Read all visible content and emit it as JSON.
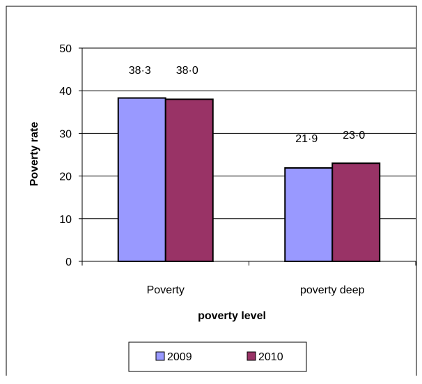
{
  "chart_data": {
    "type": "bar",
    "title": "",
    "xlabel": "poverty level",
    "ylabel": "Poverty rate",
    "categories": [
      "Poverty",
      "poverty deep"
    ],
    "series": [
      {
        "name": "2009",
        "values": [
          38.3,
          21.9
        ],
        "labels": [
          "38·3",
          "21·9"
        ],
        "color": "#9999FF"
      },
      {
        "name": "2010",
        "values": [
          38.0,
          23.0
        ],
        "labels": [
          "38·0",
          "23·0"
        ],
        "color": "#993366"
      }
    ],
    "ylim": [
      0,
      50
    ],
    "yticks": [
      "0",
      "10",
      "20",
      "30",
      "40",
      "50"
    ],
    "grid": true,
    "legend": "bottom"
  }
}
